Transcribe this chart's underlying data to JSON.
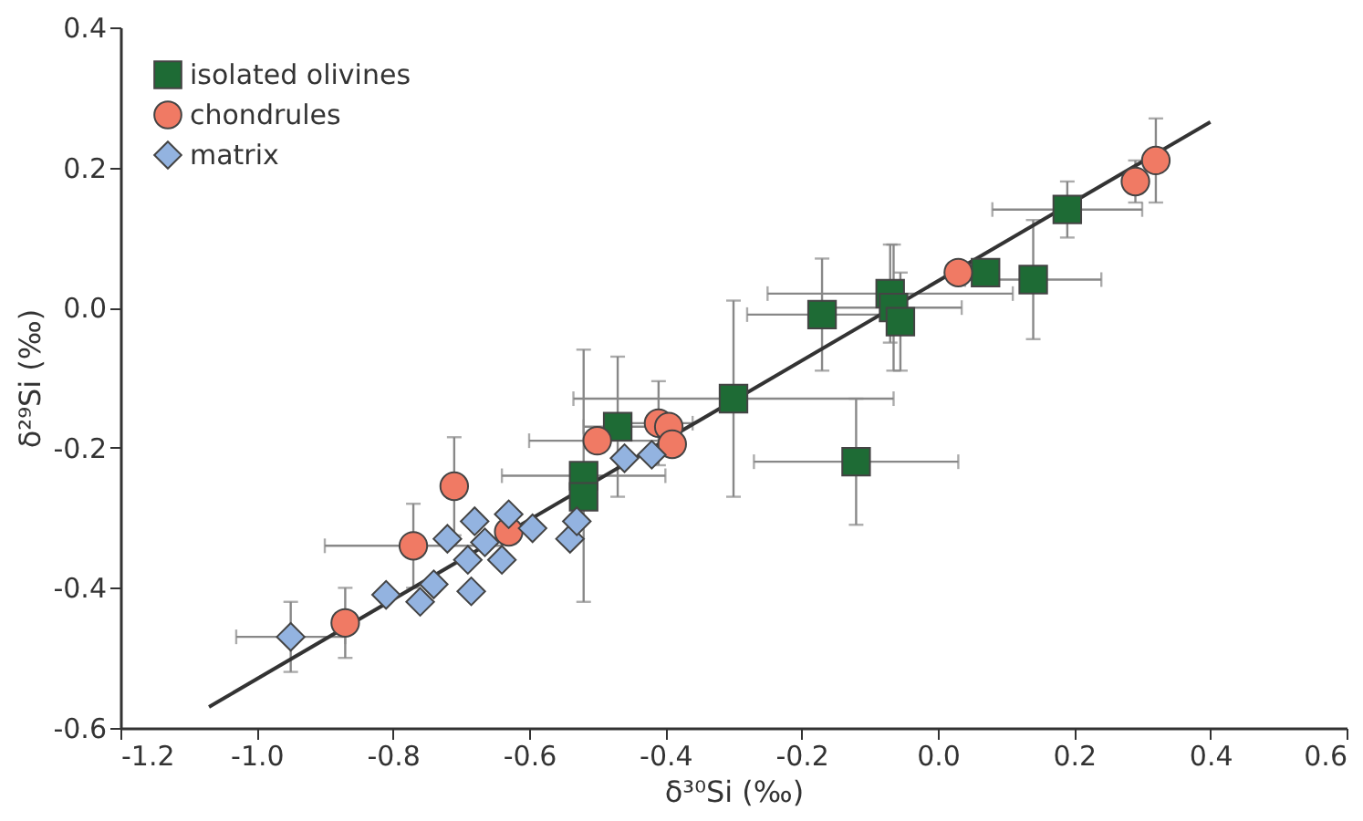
{
  "chart_data": {
    "type": "scatter",
    "xlabel": "δ³⁰Si (‰)",
    "ylabel": "δ²⁹Si (‰)",
    "xlim": [
      -1.2,
      0.6
    ],
    "ylim": [
      -0.6,
      0.4
    ],
    "xticks": [
      {
        "value": -1.2,
        "label": "-1.2"
      },
      {
        "value": -1,
        "label": "-1.0"
      },
      {
        "value": -0.8,
        "label": "-0.8"
      },
      {
        "value": -0.6,
        "label": "-0.6"
      },
      {
        "value": -0.4,
        "label": "-0.4"
      },
      {
        "value": -0.2,
        "label": "-0.2"
      },
      {
        "value": 0,
        "label": "0.0"
      },
      {
        "value": 0.2,
        "label": "0.2"
      },
      {
        "value": 0.4,
        "label": "0.4"
      },
      {
        "value": 0.6,
        "label": "0.6"
      }
    ],
    "yticks": [
      {
        "value": -0.6,
        "label": "-0.6"
      },
      {
        "value": -0.4,
        "label": "-0.4"
      },
      {
        "value": -0.2,
        "label": "-0.2"
      },
      {
        "value": 0,
        "label": "0.0"
      },
      {
        "value": 0.2,
        "label": "0.2"
      },
      {
        "value": 0.4,
        "label": "0.4"
      }
    ],
    "grid": false,
    "legend": "top left",
    "series": [
      {
        "name": "isolated olivines",
        "color": "#1e6b35",
        "marker": "square",
        "x": [
          0.19,
          0.14,
          0.07,
          -0.07,
          -0.065,
          -0.055,
          -0.17,
          -0.3,
          -0.12,
          -0.47,
          -0.52,
          -0.52
        ],
        "values": [
          0.14,
          0.04,
          0.05,
          0.02,
          0.0,
          -0.02,
          -0.01,
          -0.13,
          -0.22,
          -0.17,
          -0.24,
          -0.27
        ],
        "xerrors": [
          0.11,
          0.1,
          null,
          0.18,
          0.1,
          null,
          0.11,
          0.235,
          0.15,
          0.05,
          0.12,
          null
        ],
        "errors": [
          0.04,
          0.085,
          null,
          0.07,
          0.09,
          0.07,
          0.08,
          0.14,
          0.09,
          0.1,
          0.18,
          null
        ]
      },
      {
        "name": "chondrules",
        "color": "#f07a64",
        "marker": "circle",
        "x": [
          0.32,
          0.29,
          0.03,
          -0.41,
          -0.395,
          -0.39,
          -0.5,
          -0.71,
          -0.77,
          -0.87,
          -0.63
        ],
        "values": [
          0.21,
          0.18,
          0.05,
          -0.165,
          -0.17,
          -0.195,
          -0.19,
          -0.255,
          -0.34,
          -0.45,
          -0.32
        ],
        "xerrors": [
          null,
          null,
          null,
          0.05,
          null,
          null,
          0.1,
          null,
          0.13,
          null,
          null
        ],
        "errors": [
          0.06,
          0.03,
          null,
          0.06,
          null,
          null,
          null,
          0.07,
          0.06,
          0.05,
          null
        ]
      },
      {
        "name": "matrix",
        "color": "#93b3e0",
        "marker": "diamond",
        "x": [
          -0.95,
          -0.81,
          -0.76,
          -0.74,
          -0.72,
          -0.69,
          -0.685,
          -0.68,
          -0.665,
          -0.64,
          -0.63,
          -0.595,
          -0.54,
          -0.53,
          -0.46,
          -0.42
        ],
        "values": [
          -0.47,
          -0.41,
          -0.42,
          -0.395,
          -0.33,
          -0.36,
          -0.405,
          -0.305,
          -0.335,
          -0.36,
          -0.295,
          -0.315,
          -0.33,
          -0.305,
          -0.215,
          -0.21
        ],
        "xerrors": [
          0.08,
          null,
          null,
          null,
          null,
          null,
          null,
          null,
          null,
          null,
          null,
          null,
          null,
          null,
          null,
          null
        ],
        "errors": [
          0.05,
          null,
          null,
          null,
          null,
          null,
          null,
          null,
          null,
          null,
          null,
          null,
          null,
          null,
          null,
          null
        ]
      },
      {
        "type": "line",
        "color": "#333333",
        "x": [
          -1.07,
          0.4
        ],
        "values": [
          -0.57,
          0.265
        ]
      }
    ]
  }
}
